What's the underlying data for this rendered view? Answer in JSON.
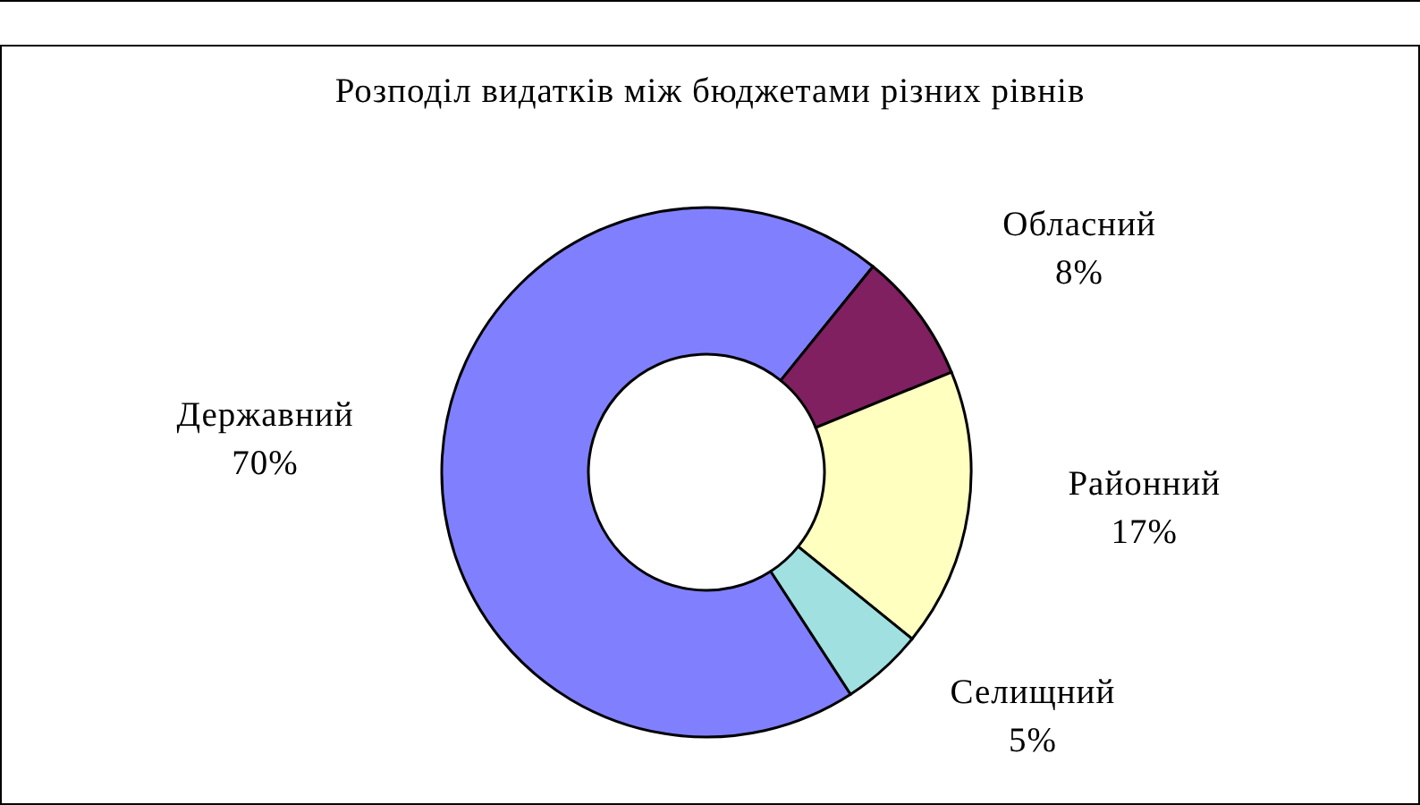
{
  "chart_data": {
    "type": "donut",
    "title": "Розподіл видатків між бюджетами різних рівнів",
    "categories": [
      "Державний",
      "Обласний",
      "Районний",
      "Селищний"
    ],
    "values": [
      70,
      8,
      17,
      5
    ],
    "colors": [
      "#8080ff",
      "#802060",
      "#ffffc0",
      "#a0e0e0"
    ],
    "value_labels": [
      "70%",
      "8%",
      "17%",
      "5%"
    ]
  }
}
